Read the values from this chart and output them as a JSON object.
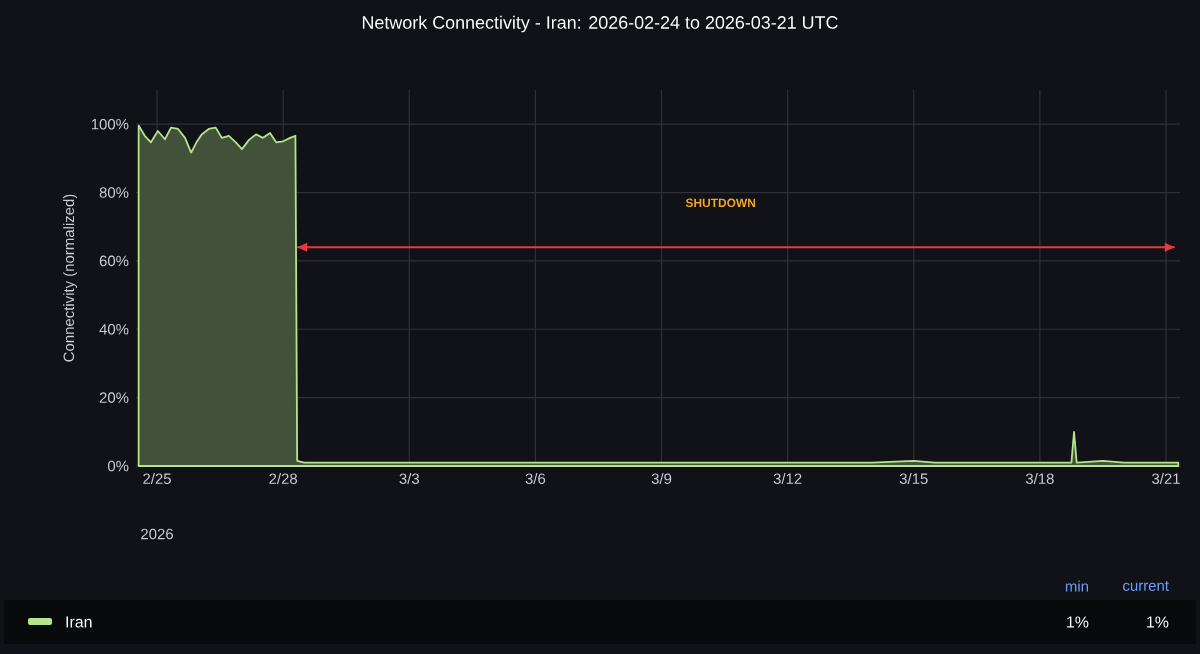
{
  "chart_data": {
    "type": "area",
    "title": "Network Connectivity - Iran: 2026-02-24 to 2026-03-21 UTC",
    "ylabel": "Connectivity (normalized)",
    "xlim": [
      "2026-02-24T12:00",
      "2026-03-21T08:00"
    ],
    "xticks": [
      {
        "value": "2026-02-25",
        "label": "2/25"
      },
      {
        "value": "2026-02-28",
        "label": "2/28"
      },
      {
        "value": "2026-03-03",
        "label": "3/3"
      },
      {
        "value": "2026-03-06",
        "label": "3/6"
      },
      {
        "value": "2026-03-09",
        "label": "3/9"
      },
      {
        "value": "2026-03-12",
        "label": "3/12"
      },
      {
        "value": "2026-03-15",
        "label": "3/15"
      },
      {
        "value": "2026-03-18",
        "label": "3/18"
      },
      {
        "value": "2026-03-21",
        "label": "3/21"
      }
    ],
    "ylim": [
      0,
      110
    ],
    "yticks": [
      {
        "value": 0,
        "label": "0%"
      },
      {
        "value": 20,
        "label": "20%"
      },
      {
        "value": 40,
        "label": "40%"
      },
      {
        "value": 60,
        "label": "60%"
      },
      {
        "value": 80,
        "label": "80%"
      },
      {
        "value": 100,
        "label": "100%"
      }
    ],
    "grid": true,
    "legend": "bottom",
    "series": [
      {
        "name": "Iran",
        "color": "#b5e48c",
        "x": [
          "2026-02-24T13:30",
          "2026-02-24T17:00",
          "2026-02-24T20:30",
          "2026-02-25T00:30",
          "2026-02-25T04:30",
          "2026-02-25T08:00",
          "2026-02-25T12:00",
          "2026-02-25T16:00",
          "2026-02-25T19:30",
          "2026-02-25T22:30",
          "2026-02-26T01:30",
          "2026-02-26T05:30",
          "2026-02-26T09:30",
          "2026-02-26T13:00",
          "2026-02-26T17:00",
          "2026-02-26T21:00",
          "2026-02-27T00:30",
          "2026-02-27T04:30",
          "2026-02-27T08:30",
          "2026-02-27T12:30",
          "2026-02-27T16:30",
          "2026-02-27T20:00",
          "2026-02-28T00:00",
          "2026-02-28T04:00",
          "2026-02-28T07:00",
          "2026-02-28T08:00",
          "2026-02-28T12:00",
          "2026-03-02",
          "2026-03-05",
          "2026-03-08",
          "2026-03-11",
          "2026-03-14",
          "2026-03-15",
          "2026-03-15T12:00",
          "2026-03-18T18:00",
          "2026-03-18T19:30",
          "2026-03-18T21:00",
          "2026-03-19T12:00",
          "2026-03-20",
          "2026-03-21T07:00"
        ],
        "values": [
          99.6,
          96.6,
          94.7,
          98,
          95.6,
          99,
          98.6,
          96,
          91.7,
          94.7,
          97,
          98.6,
          99,
          96,
          96.6,
          94.7,
          92.7,
          95.4,
          97,
          96,
          97.4,
          94.7,
          95,
          96,
          96.6,
          1.5,
          1,
          1,
          1,
          1,
          1,
          1,
          1.5,
          1,
          1,
          10,
          1,
          1.5,
          1,
          1
        ]
      },
      {
        "type": "line",
        "color": "#e8383d",
        "x": [
          "2026-02-28T08:00",
          "2026-03-21T05:00"
        ],
        "values": [
          64,
          64
        ]
      }
    ],
    "annotations": [
      "2026",
      "min",
      "current",
      "1%",
      "1%",
      "SHUTDOWN"
    ]
  }
}
